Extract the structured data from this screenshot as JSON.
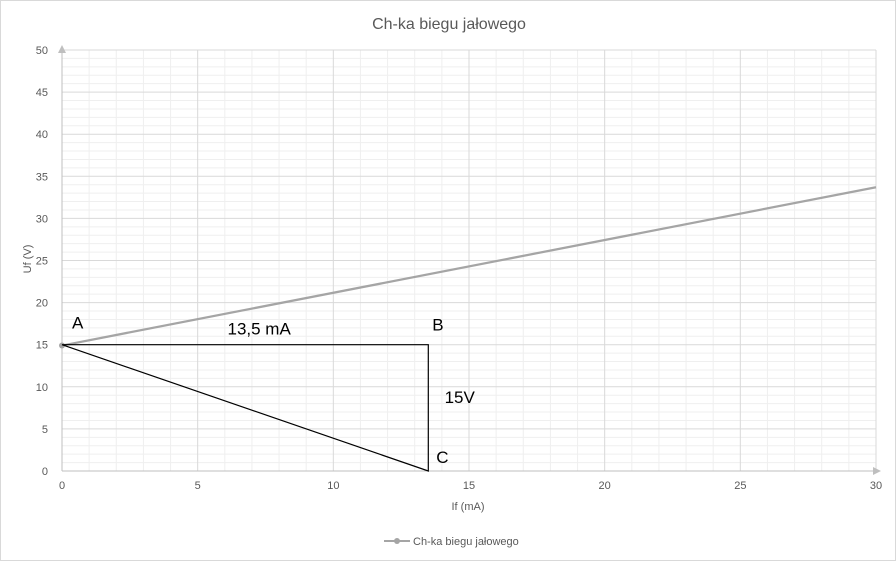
{
  "chart_data": {
    "type": "scatter",
    "title": "Ch-ka biegu jałowego",
    "xlabel": "If (mA)",
    "ylabel": "Uf (V)",
    "xlim": [
      0,
      30
    ],
    "ylim": [
      0,
      50
    ],
    "xticks": [
      0,
      5,
      10,
      15,
      20,
      25,
      30
    ],
    "yticks": [
      0,
      5,
      10,
      15,
      20,
      25,
      30,
      35,
      40,
      45,
      50
    ],
    "grid": true,
    "legend_position": "bottom",
    "series": [
      {
        "name": "Ch-ka biegu jałowego",
        "color": "#a5a5a5",
        "x": [
          0,
          30
        ],
        "y": [
          14.9,
          33.7
        ]
      }
    ],
    "annotations": {
      "triangle": {
        "color": "#000000",
        "points": [
          {
            "label": "A",
            "x": 0,
            "y": 15
          },
          {
            "label": "B",
            "x": 13.5,
            "y": 15
          },
          {
            "label": "C",
            "x": 13.5,
            "y": 0
          }
        ]
      },
      "labels": [
        {
          "text": "13,5 mA",
          "x": 6.1,
          "y": 16.2
        },
        {
          "text": "15V",
          "x": 14.1,
          "y": 8.1
        }
      ]
    }
  }
}
